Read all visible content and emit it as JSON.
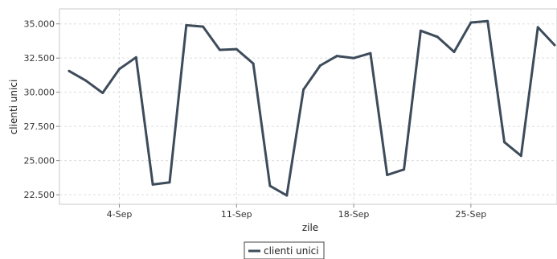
{
  "chart_data": {
    "type": "line",
    "xlabel": "zile",
    "ylabel": "clienti unici",
    "ylim": [
      21800,
      36100
    ],
    "y_ticks": [
      22500,
      25000,
      27500,
      30000,
      32500,
      35000
    ],
    "y_tick_labels": [
      "22.500",
      "25.000",
      "27.500",
      "30.000",
      "32.500",
      "35.000"
    ],
    "x_tick_days": [
      4,
      11,
      18,
      25
    ],
    "x_tick_labels": [
      "4-Sep",
      "11-Sep",
      "18-Sep",
      "25-Sep"
    ],
    "grid": true,
    "legend_position": "bottom-center",
    "line_color": "#3d4b5a",
    "series": [
      {
        "name": "clienti unici",
        "days": [
          1,
          2,
          3,
          4,
          5,
          6,
          7,
          8,
          9,
          10,
          11,
          12,
          13,
          14,
          15,
          16,
          17,
          18,
          19,
          20,
          21,
          22,
          23,
          24,
          25,
          26,
          27,
          28,
          29,
          30
        ],
        "values": [
          31550,
          30850,
          29950,
          31700,
          32550,
          23250,
          23400,
          34900,
          34800,
          33100,
          33150,
          32100,
          23150,
          22450,
          30200,
          31950,
          32650,
          32500,
          32850,
          23950,
          24350,
          34500,
          34050,
          32950,
          35100,
          35200,
          26350,
          25350,
          34750,
          33450
        ]
      }
    ]
  }
}
